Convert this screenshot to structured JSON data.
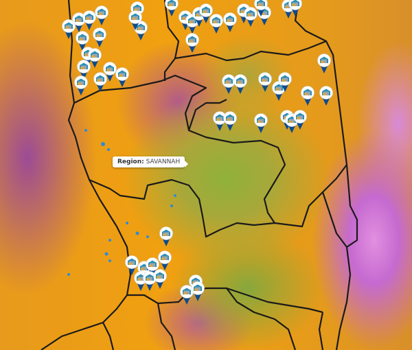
{
  "map": {
    "tooltip": {
      "label": "Region:",
      "value": "SAVANNAH"
    },
    "marker_icon": "warehouse-icon",
    "marker_count": 55,
    "colors": {
      "pin": "#0d4a8f",
      "marker_ring": "#ffffff",
      "borders": "#1a1a1a",
      "water_bodies": "#2e8bd8"
    }
  }
}
